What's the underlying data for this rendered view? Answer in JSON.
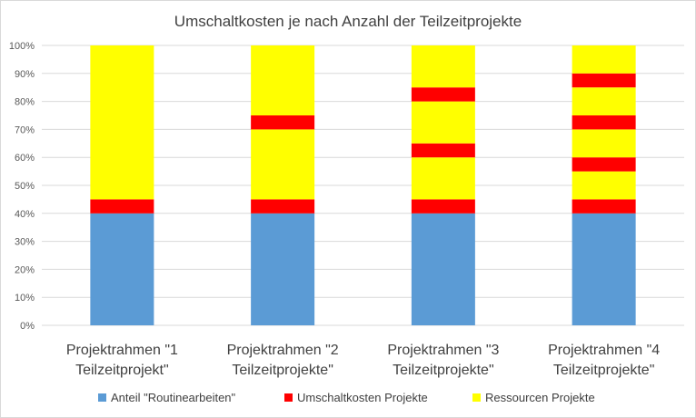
{
  "chart_data": {
    "type": "bar",
    "stacked": true,
    "title": "Umschaltkosten je nach Anzahl der Teilzeitprojekte",
    "categories": [
      [
        "Projektrahmen \"1",
        "Teilzeitprojekt\""
      ],
      [
        "Projektrahmen \"2",
        "Teilzeitprojekte\""
      ],
      [
        "Projektrahmen \"3",
        "Teilzeitprojekte\""
      ],
      [
        "Projektrahmen \"4",
        "Teilzeitprojekte\""
      ]
    ],
    "ylim": [
      0,
      100
    ],
    "yticks": [
      "0%",
      "10%",
      "20%",
      "30%",
      "40%",
      "50%",
      "60%",
      "70%",
      "80%",
      "90%",
      "100%"
    ],
    "grid": true,
    "legend_position": "bottom",
    "segments": [
      [
        {
          "series": "Anteil \"Routinearbeiten\"",
          "value": 40
        },
        {
          "series": "Umschaltkosten Projekte",
          "value": 5
        },
        {
          "series": "Ressourcen Projekte",
          "value": 55
        }
      ],
      [
        {
          "series": "Anteil \"Routinearbeiten\"",
          "value": 40
        },
        {
          "series": "Umschaltkosten Projekte",
          "value": 5
        },
        {
          "series": "Ressourcen Projekte",
          "value": 25
        },
        {
          "series": "Umschaltkosten Projekte",
          "value": 5
        },
        {
          "series": "Ressourcen Projekte",
          "value": 25
        }
      ],
      [
        {
          "series": "Anteil \"Routinearbeiten\"",
          "value": 40
        },
        {
          "series": "Umschaltkosten Projekte",
          "value": 5
        },
        {
          "series": "Ressourcen Projekte",
          "value": 15
        },
        {
          "series": "Umschaltkosten Projekte",
          "value": 5
        },
        {
          "series": "Ressourcen Projekte",
          "value": 15
        },
        {
          "series": "Umschaltkosten Projekte",
          "value": 5
        },
        {
          "series": "Ressourcen Projekte",
          "value": 15
        }
      ],
      [
        {
          "series": "Anteil \"Routinearbeiten\"",
          "value": 40
        },
        {
          "series": "Umschaltkosten Projekte",
          "value": 5
        },
        {
          "series": "Ressourcen Projekte",
          "value": 10
        },
        {
          "series": "Umschaltkosten Projekte",
          "value": 5
        },
        {
          "series": "Ressourcen Projekte",
          "value": 10
        },
        {
          "series": "Umschaltkosten Projekte",
          "value": 5
        },
        {
          "series": "Ressourcen Projekte",
          "value": 10
        },
        {
          "series": "Umschaltkosten Projekte",
          "value": 5
        },
        {
          "series": "Ressourcen Projekte",
          "value": 10
        }
      ]
    ],
    "legend": [
      {
        "name": "Anteil \"Routinearbeiten\"",
        "color": "#5b9bd5"
      },
      {
        "name": "Umschaltkosten Projekte",
        "color": "#ff0000"
      },
      {
        "name": "Ressourcen Projekte",
        "color": "#ffff00"
      }
    ]
  }
}
